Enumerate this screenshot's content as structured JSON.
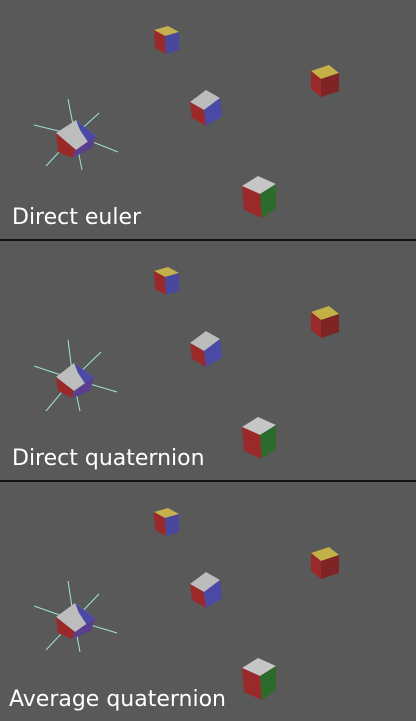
{
  "panels": [
    {
      "caption": "Direct euler"
    },
    {
      "caption": "Direct quaternion"
    },
    {
      "caption": "Average quaternion"
    }
  ],
  "colors": {
    "background": "#595959",
    "divider": "#111111",
    "caption": "#ffffff",
    "cube_top": "#b9b9b9",
    "cube_red": "#9a2a2a",
    "cube_dark_red": "#6f1f1f",
    "cube_green": "#2d6b2d",
    "cube_blue": "#4a4aa6",
    "cube_yellow": "#bfae45",
    "rays": "#9fe3d3"
  }
}
